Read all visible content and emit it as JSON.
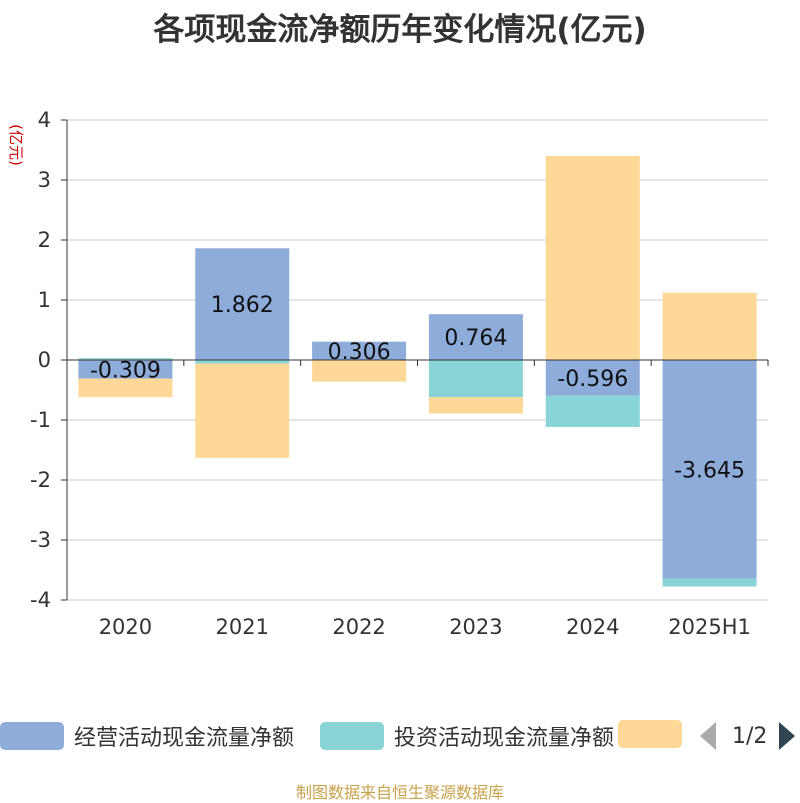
{
  "title": "各项现金流净额历年变化情况(亿元)",
  "chart_data": {
    "type": "bar",
    "stacked": true,
    "categories": [
      "2020",
      "2021",
      "2022",
      "2023",
      "2024",
      "2025H1"
    ],
    "ylabel": "(亿元)",
    "ylim": [
      -4,
      4
    ],
    "yticks": [
      "4",
      "3",
      "2",
      "1",
      "0",
      "-1",
      "-2",
      "-3",
      "-4"
    ],
    "grid": true,
    "legend_position": "bottom",
    "series": [
      {
        "name": "经营活动现金流量净额",
        "color": "#8eacd9",
        "values": [
          -0.309,
          1.862,
          0.306,
          0.764,
          -0.596,
          -3.645
        ],
        "labels": [
          "-0.309",
          "1.862",
          "0.306",
          "0.764",
          "-0.596",
          "-3.645"
        ]
      },
      {
        "name": "投资活动现金流量净额",
        "color": "#88d4d6",
        "values": [
          0.03,
          -0.06,
          0.0,
          -0.62,
          -0.52,
          -0.13
        ]
      },
      {
        "name": "",
        "color": "#fed896",
        "values": [
          -0.31,
          -1.57,
          -0.36,
          -0.27,
          3.4,
          1.12
        ]
      }
    ]
  },
  "legend": {
    "items": [
      {
        "label": "经营活动现金流量净额",
        "color": "#8eacd9"
      },
      {
        "label": "投资活动现金流量净额",
        "color": "#88d4d6"
      },
      {
        "label": "",
        "color": "#fed896"
      }
    ],
    "page": "1/2"
  },
  "source": "制图数据来自恒生聚源数据库"
}
